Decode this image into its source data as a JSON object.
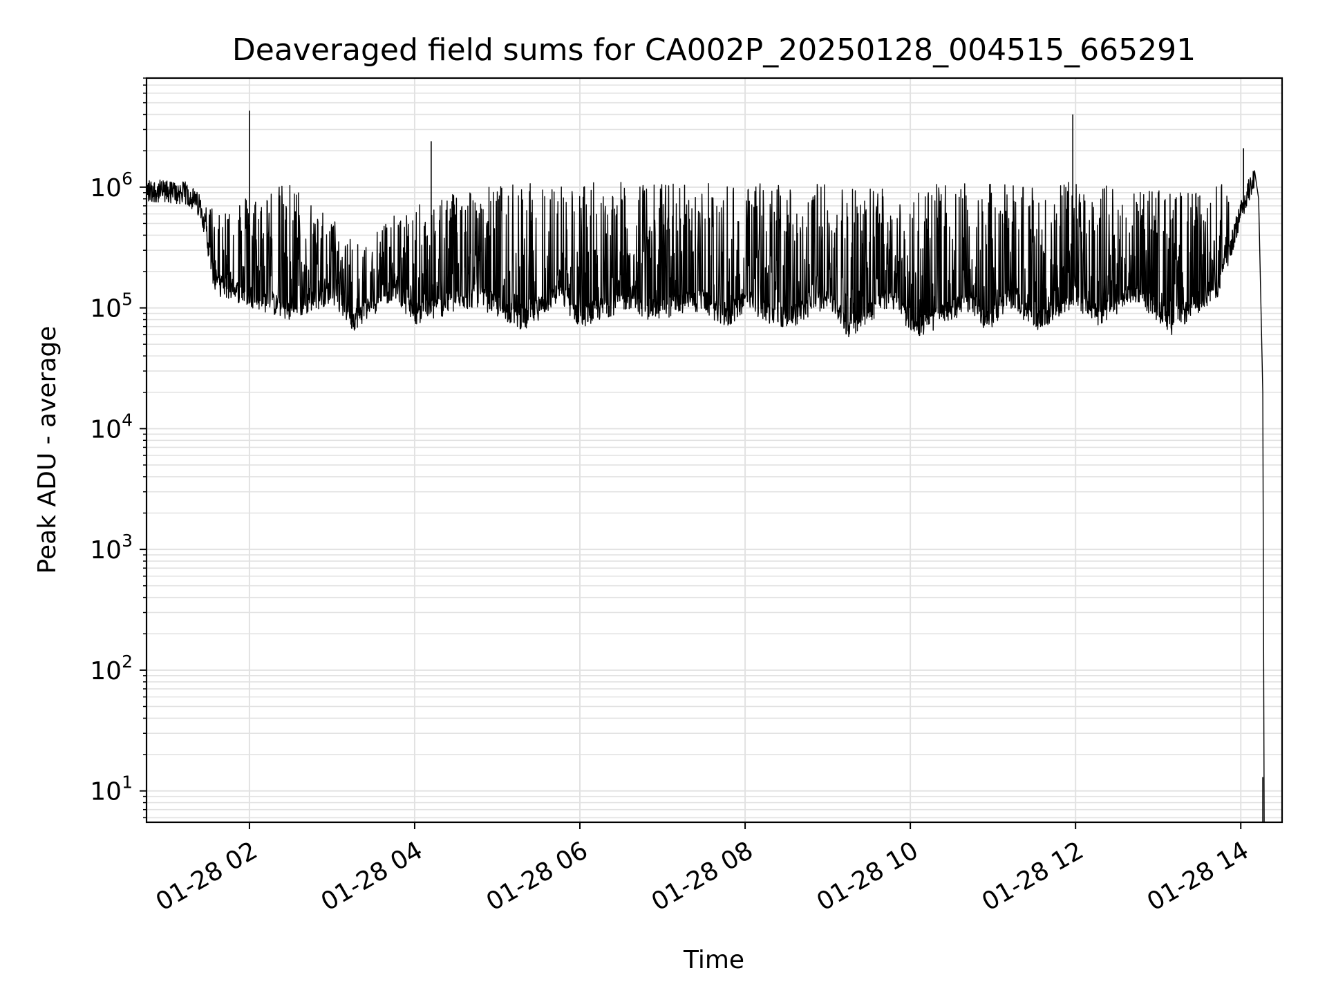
{
  "chart_data": {
    "type": "line",
    "title": "Deaveraged field sums for CA002P_20250128_004515_665291",
    "xlabel": "Time",
    "ylabel": "Peak ADU - average",
    "x_range": [
      "2025-01-28 00:45:15",
      "2025-01-28 14:30:00"
    ],
    "y_scale": "log",
    "ylim": [
      5.5,
      8000000
    ],
    "grid": true,
    "grid_minor": true,
    "line_color": "#000000",
    "x_ticks": [
      {
        "value": "2025-01-28 02:00",
        "label": "01-28 02"
      },
      {
        "value": "2025-01-28 04:00",
        "label": "01-28 04"
      },
      {
        "value": "2025-01-28 06:00",
        "label": "01-28 06"
      },
      {
        "value": "2025-01-28 08:00",
        "label": "01-28 08"
      },
      {
        "value": "2025-01-28 10:00",
        "label": "01-28 10"
      },
      {
        "value": "2025-01-28 12:00",
        "label": "01-28 12"
      },
      {
        "value": "2025-01-28 14:00",
        "label": "01-28 14"
      }
    ],
    "y_ticks": [
      {
        "value": 10,
        "base": "10",
        "exp": "1"
      },
      {
        "value": 100,
        "base": "10",
        "exp": "2"
      },
      {
        "value": 1000,
        "base": "10",
        "exp": "3"
      },
      {
        "value": 10000,
        "base": "10",
        "exp": "4"
      },
      {
        "value": 100000,
        "base": "10",
        "exp": "5"
      },
      {
        "value": 1000000,
        "base": "10",
        "exp": "6"
      }
    ],
    "series": [
      {
        "baseline": [
          {
            "t": "2025-01-28 00:45",
            "y": 900000
          },
          {
            "t": "2025-01-28 01:15",
            "y": 850000
          },
          {
            "t": "2025-01-28 01:25",
            "y": 650000
          },
          {
            "t": "2025-01-28 01:35",
            "y": 150000
          },
          {
            "t": "2025-01-28 02:00",
            "y": 120000
          },
          {
            "t": "2025-01-28 02:30",
            "y": 90000
          },
          {
            "t": "2025-01-28 03:00",
            "y": 130000
          },
          {
            "t": "2025-01-28 03:15",
            "y": 75000
          },
          {
            "t": "2025-01-28 03:45",
            "y": 140000
          },
          {
            "t": "2025-01-28 04:00",
            "y": 85000
          },
          {
            "t": "2025-01-28 04:45",
            "y": 120000
          },
          {
            "t": "2025-01-28 05:20",
            "y": 75000
          },
          {
            "t": "2025-01-28 05:45",
            "y": 130000
          },
          {
            "t": "2025-01-28 06:00",
            "y": 80000
          },
          {
            "t": "2025-01-28 06:40",
            "y": 120000
          },
          {
            "t": "2025-01-28 06:45",
            "y": 90000
          },
          {
            "t": "2025-01-28 07:30",
            "y": 110000
          },
          {
            "t": "2025-01-28 07:45",
            "y": 75000
          },
          {
            "t": "2025-01-28 08:00",
            "y": 110000
          },
          {
            "t": "2025-01-28 08:30",
            "y": 75000
          },
          {
            "t": "2025-01-28 09:00",
            "y": 120000
          },
          {
            "t": "2025-01-28 09:15",
            "y": 65000
          },
          {
            "t": "2025-01-28 09:45",
            "y": 120000
          },
          {
            "t": "2025-01-28 10:05",
            "y": 65000
          },
          {
            "t": "2025-01-28 10:45",
            "y": 110000
          },
          {
            "t": "2025-01-28 10:55",
            "y": 70000
          },
          {
            "t": "2025-01-28 11:15",
            "y": 120000
          },
          {
            "t": "2025-01-28 11:30",
            "y": 70000
          },
          {
            "t": "2025-01-28 12:00",
            "y": 120000
          },
          {
            "t": "2025-01-28 12:15",
            "y": 80000
          },
          {
            "t": "2025-01-28 12:45",
            "y": 130000
          },
          {
            "t": "2025-01-28 13:10",
            "y": 70000
          },
          {
            "t": "2025-01-28 13:45",
            "y": 150000
          },
          {
            "t": "2025-01-28 14:00",
            "y": 600000
          },
          {
            "t": "2025-01-28 14:10",
            "y": 1200000
          },
          {
            "t": "2025-01-28 14:13",
            "y": 800000
          },
          {
            "t": "2025-01-28 14:17",
            "y": 5.5
          }
        ],
        "upper_envelope": [
          {
            "t": "2025-01-28 00:45",
            "y": 1400000
          },
          {
            "t": "2025-01-28 01:30",
            "y": 700000
          },
          {
            "t": "2025-01-28 02:30",
            "y": 1100000
          },
          {
            "t": "2025-01-28 03:15",
            "y": 400000
          },
          {
            "t": "2025-01-28 04:30",
            "y": 1000000
          },
          {
            "t": "2025-01-28 05:30",
            "y": 1100000
          },
          {
            "t": "2025-01-28 08:30",
            "y": 1100000
          },
          {
            "t": "2025-01-28 10:00",
            "y": 1050000
          },
          {
            "t": "2025-01-28 12:00",
            "y": 1100000
          },
          {
            "t": "2025-01-28 13:30",
            "y": 900000
          },
          {
            "t": "2025-01-28 14:00",
            "y": 1500000
          }
        ],
        "spikes": [
          {
            "t": "2025-01-28 02:00",
            "y": 4300000
          },
          {
            "t": "2025-01-28 04:12",
            "y": 2400000
          },
          {
            "t": "2025-01-28 11:58",
            "y": 4000000
          },
          {
            "t": "2025-01-28 14:02",
            "y": 2100000
          }
        ],
        "tail_blip": {
          "t": "2025-01-28 14:16",
          "y": 13
        }
      }
    ]
  }
}
